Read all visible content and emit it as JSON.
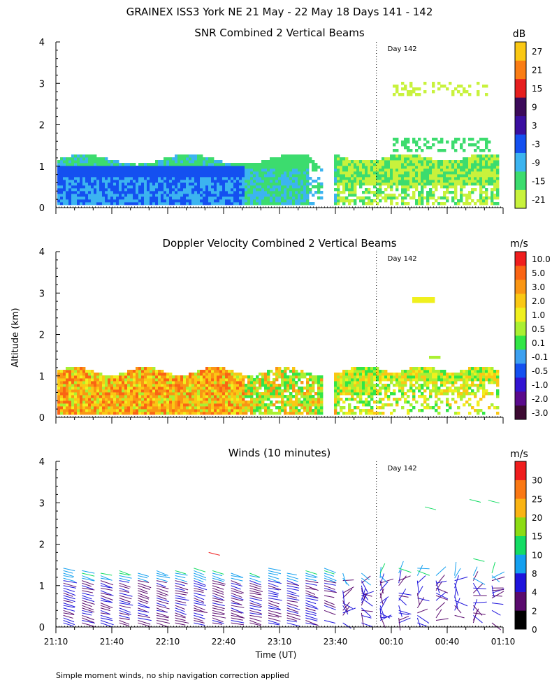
{
  "figure_title": "GRAINEX ISS3 York NE  21 May - 22 May 18 Days 141 - 142",
  "y_axis_label": "Altitude (km)",
  "footer_note": "Simple moment winds, no ship navigation correction applied",
  "chart_data": [
    {
      "type": "heatmap",
      "title": "SNR Combined 2 Vertical Beams",
      "units": "dB",
      "xlabel": "",
      "ylabel": "Altitude (km)",
      "ylim": [
        0,
        4
      ],
      "yticks": [
        0,
        1,
        2,
        3,
        4
      ],
      "xticks_minutes": [
        0,
        30,
        60,
        90,
        120,
        150,
        180,
        210,
        240
      ],
      "xlim_minutes": [
        0,
        240
      ],
      "day_marker": {
        "minute": 172,
        "label": "Day 142"
      },
      "colorbar": {
        "tick_labels": [
          "-21",
          "-15",
          "-9",
          "-3",
          "3",
          "9",
          "15",
          "21",
          "27"
        ],
        "colors": [
          "#c8f23c",
          "#3cdc6e",
          "#3cb4f0",
          "#1450f0",
          "#3a0fa0",
          "#3c0a5a",
          "#e61e1e",
          "#fa7d14",
          "#fac814"
        ]
      }
    },
    {
      "type": "heatmap",
      "title": "Doppler Velocity Combined 2 Vertical Beams",
      "units": "m/s",
      "xlabel": "",
      "ylabel": "Altitude (km)",
      "ylim": [
        0,
        4
      ],
      "yticks": [
        0,
        1,
        2,
        3,
        4
      ],
      "xticks_minutes": [
        0,
        30,
        60,
        90,
        120,
        150,
        180,
        210,
        240
      ],
      "xlim_minutes": [
        0,
        240
      ],
      "day_marker": {
        "minute": 172,
        "label": "Day 142"
      },
      "colorbar": {
        "tick_labels": [
          "10.0",
          "5.0",
          "3.0",
          "2.0",
          "1.0",
          "0.5",
          "0.1",
          "-0.1",
          "-0.5",
          "-1.0",
          "-2.0",
          "-3.0"
        ],
        "colors": [
          "#3c0a32",
          "#5a0a8c",
          "#3214d2",
          "#1450f0",
          "#3ca0f0",
          "#32e646",
          "#aaf032",
          "#f0f01e",
          "#fac814",
          "#fa9614",
          "#fa6414",
          "#f01e1e"
        ]
      }
    },
    {
      "type": "scatter",
      "title": "Winds (10 minutes)",
      "units": "m/s",
      "xlabel": "Time (UT)",
      "ylabel": "Altitude (km)",
      "ylim": [
        0,
        4
      ],
      "yticks": [
        0,
        1,
        2,
        3,
        4
      ],
      "xticks_minutes": [
        0,
        30,
        60,
        90,
        120,
        150,
        180,
        210,
        240
      ],
      "xtick_labels": [
        "21:10",
        "21:40",
        "22:10",
        "22:40",
        "23:10",
        "23:40",
        "00:10",
        "00:40",
        "01:10"
      ],
      "xlim_minutes": [
        0,
        240
      ],
      "day_marker": {
        "minute": 172,
        "label": "Day 142"
      },
      "profile_times_minutes": [
        4,
        14,
        24,
        34,
        44,
        54,
        64,
        74,
        84,
        94,
        104,
        114,
        124,
        134,
        144,
        154,
        164,
        174,
        184,
        194,
        204,
        214,
        224,
        234
      ],
      "colorbar": {
        "tick_labels": [
          "0",
          "2",
          "4",
          "8",
          "10",
          "15",
          "20",
          "25",
          "30"
        ],
        "colors": [
          "#000000",
          "#5a0a6e",
          "#1e14dc",
          "#14a0f0",
          "#14dc64",
          "#8cdc14",
          "#fab414",
          "#fa7814",
          "#f01e1e"
        ]
      }
    }
  ]
}
